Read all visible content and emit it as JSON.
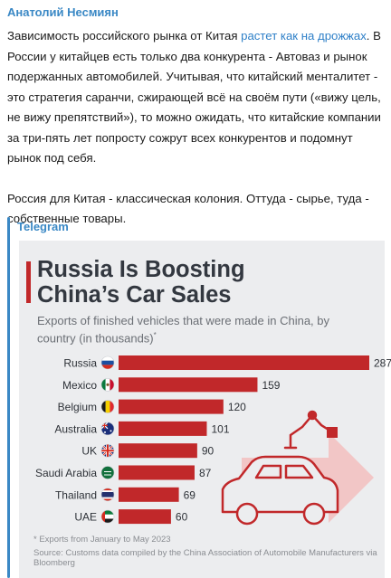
{
  "post": {
    "author": "Анатолий Несмиян",
    "p1_before": "Зависимость российского рынка от Китая ",
    "p1_link": "растет как на дрожжах",
    "p1_after": ". В России у китайцев есть только два конкурента - Автоваз и рынок подержанных автомобилей. Учитывая, что китайский менталитет - это стратегия саранчи, сжирающей всё на своём пути («вижу цель, не вижу препятствий»), то можно ожидать, что китайские компании за три-пять лет попросту сожрут всех конкурентов и подомнут рынок под себя.",
    "p2": "Россия для Китая - классическая колония. Оттуда - сырье, туда - собственные товары."
  },
  "preview": {
    "site_name": "Telegram",
    "chart_title_line1": "Russia Is Boosting",
    "chart_title_line2": "China’s Car Sales",
    "chart_subtitle": "Exports of finished vehicles that were made in China, by country (in thousands)",
    "subtitle_marker": "*",
    "footnote": "* Exports from January to May 2023",
    "source": "Source: Customs data compiled by the China Association of Automobile Manufacturers via Bloomberg"
  },
  "colors": {
    "bar": "#c1282a",
    "accent": "#c1282a",
    "link": "#2f80c8",
    "telegram_blue": "#3a88c5"
  },
  "chart_data": {
    "type": "bar",
    "orientation": "horizontal",
    "title": "Russia Is Boosting China’s Car Sales",
    "subtitle": "Exports of finished vehicles that were made in China, by country (in thousands)",
    "categories": [
      "Russia",
      "Mexico",
      "Belgium",
      "Australia",
      "UK",
      "Saudi Arabia",
      "Thailand",
      "UAE"
    ],
    "values": [
      287,
      159,
      120,
      101,
      90,
      87,
      69,
      60
    ],
    "flags": [
      "russia-flag-icon",
      "mexico-flag-icon",
      "belgium-flag-icon",
      "australia-flag-icon",
      "uk-flag-icon",
      "saudi-arabia-flag-icon",
      "thailand-flag-icon",
      "uae-flag-icon"
    ],
    "xlim": [
      0,
      287
    ],
    "grid": false,
    "data_labels": true
  }
}
